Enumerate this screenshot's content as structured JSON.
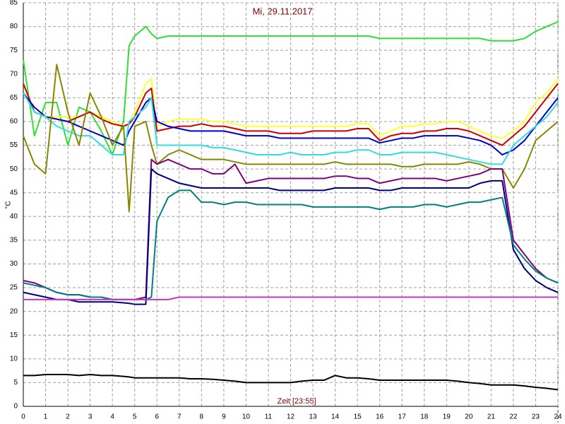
{
  "chart_data": {
    "type": "line",
    "title": "Mi, 29.11.2017",
    "y_label": "°C",
    "x_label": "Zeit [23:55]",
    "xlim": [
      0,
      24
    ],
    "xticks": [
      0,
      1,
      2,
      3,
      4,
      5,
      6,
      7,
      8,
      9,
      10,
      11,
      12,
      13,
      14,
      15,
      16,
      17,
      18,
      19,
      20,
      21,
      22,
      23,
      24
    ],
    "ylim": [
      0,
      85
    ],
    "yticks": [
      0,
      5,
      10,
      15,
      20,
      25,
      30,
      35,
      40,
      45,
      50,
      55,
      60,
      65,
      70,
      75,
      80,
      85
    ],
    "grid": true,
    "x": [
      0,
      0.5,
      1,
      1.5,
      2,
      2.5,
      3,
      3.5,
      4,
      4.5,
      4.75,
      5,
      5.5,
      5.75,
      6,
      6.5,
      7,
      7.5,
      8,
      8.5,
      9,
      9.5,
      10,
      10.5,
      11,
      11.5,
      12,
      12.5,
      13,
      13.5,
      14,
      14.5,
      15,
      15.5,
      16,
      16.5,
      17,
      17.5,
      18,
      18.5,
      19,
      19.5,
      20,
      20.5,
      21,
      21.5,
      22,
      22.5,
      23,
      23.5,
      24
    ],
    "series": [
      {
        "color": "#33dd33",
        "values": [
          73,
          57,
          64,
          64,
          55,
          63,
          62,
          58,
          53,
          60,
          76,
          78,
          80,
          78.5,
          77.5,
          78,
          78,
          78,
          78,
          78,
          78,
          78,
          78,
          78,
          78,
          78,
          78,
          78,
          78,
          78,
          78,
          78,
          78,
          78,
          77.5,
          77.5,
          77.5,
          77.5,
          77.5,
          77.5,
          77.5,
          77.5,
          77.5,
          77.5,
          77,
          77,
          77,
          77.5,
          79,
          80,
          81
        ]
      },
      {
        "color": "#ffff33",
        "values": [
          68,
          62,
          61,
          61,
          61,
          61,
          62,
          61,
          60,
          59,
          59.5,
          62,
          68,
          69,
          59,
          60,
          60.5,
          60.5,
          60.5,
          60,
          60,
          59.5,
          59,
          59,
          59,
          59,
          59,
          59,
          59,
          59,
          59,
          59,
          59.5,
          59.5,
          57,
          58,
          59,
          59,
          59.5,
          59.5,
          60,
          60,
          59,
          58,
          57,
          56.5,
          58,
          60,
          64,
          66,
          69
        ]
      },
      {
        "color": "#cc0000",
        "values": [
          68,
          62,
          61,
          60.5,
          60,
          61,
          62,
          60.5,
          59.5,
          59,
          59.5,
          61,
          66,
          67,
          58,
          58.5,
          59,
          59,
          59.5,
          59,
          59,
          58.5,
          58,
          58,
          58,
          57.5,
          57.5,
          57.5,
          58,
          58,
          58,
          58,
          58.5,
          58.5,
          56,
          57,
          57.5,
          57.5,
          58,
          58,
          58.5,
          58.5,
          58,
          57,
          56,
          55,
          57,
          59,
          62,
          65,
          68
        ]
      },
      {
        "color": "#0000cc",
        "values": [
          66,
          63,
          61,
          60.5,
          60,
          59,
          58,
          57,
          56,
          55,
          58,
          60,
          64,
          65,
          60,
          59,
          58.5,
          58,
          58,
          58,
          58,
          57.5,
          57,
          57,
          57,
          56.5,
          56.5,
          56.5,
          56.5,
          56.5,
          56.5,
          56.5,
          56.5,
          56.5,
          55.5,
          56,
          56.5,
          56.5,
          57,
          57,
          57,
          57,
          56.5,
          56,
          55,
          53,
          54,
          56,
          59,
          62,
          65
        ]
      },
      {
        "color": "#33dddd",
        "values": [
          66,
          62,
          61,
          59,
          58,
          57,
          57,
          55,
          53,
          53,
          60,
          61,
          63,
          65,
          55,
          55,
          55,
          55,
          55,
          54.5,
          54.5,
          54,
          53.5,
          53,
          53,
          53,
          53.5,
          53,
          53,
          53,
          53.5,
          53.5,
          54,
          54,
          53,
          53,
          53.5,
          53.5,
          53.5,
          53.5,
          53,
          52.5,
          52,
          51.5,
          51,
          51,
          55,
          57,
          59,
          61,
          64
        ]
      },
      {
        "color": "#888800",
        "values": [
          57,
          51,
          49,
          72,
          62,
          55,
          66,
          61,
          55,
          59,
          41,
          59,
          60,
          55,
          51,
          53,
          54,
          53,
          52,
          52,
          52,
          51.5,
          51,
          51,
          51,
          51,
          51,
          51,
          51,
          51,
          51.5,
          51,
          51,
          51,
          51,
          51,
          50.5,
          50.5,
          51,
          51,
          51,
          51,
          51.5,
          51,
          50,
          50,
          46,
          50,
          56,
          58,
          60
        ]
      },
      {
        "color": "#800080",
        "values": [
          26.5,
          26,
          25,
          24,
          23.5,
          23.5,
          23,
          23,
          22.5,
          22.5,
          22.5,
          22.5,
          23,
          52,
          51,
          52,
          51,
          50,
          50,
          49,
          49,
          51,
          47,
          47.5,
          48,
          48,
          48,
          48,
          48,
          48,
          48.5,
          48.5,
          48,
          48,
          47,
          47.5,
          48,
          48,
          48,
          48,
          47.5,
          48,
          48.5,
          49,
          50,
          50,
          35,
          32,
          29,
          27,
          26
        ]
      },
      {
        "color": "#000080",
        "values": [
          24,
          23.5,
          23,
          22.5,
          22.5,
          22,
          22,
          22,
          22,
          21.8,
          21.7,
          21.5,
          21.5,
          50,
          49,
          48,
          47,
          46.5,
          46,
          46,
          46,
          46,
          46,
          46,
          46,
          45.5,
          45.5,
          45.5,
          45.5,
          45.5,
          46,
          46,
          46,
          46,
          45.5,
          45.5,
          46,
          46,
          46,
          46,
          46,
          46,
          46,
          47,
          47.5,
          47.5,
          33,
          29,
          26.5,
          25,
          24
        ]
      },
      {
        "color": "#008080",
        "values": [
          26,
          25.5,
          25,
          24,
          23.5,
          23.5,
          23,
          23,
          22.5,
          22.5,
          22.5,
          22.5,
          22.5,
          23,
          39,
          44,
          45.5,
          45.5,
          43,
          43,
          42.5,
          43,
          43,
          42.5,
          42.5,
          42.5,
          42.5,
          42.5,
          42,
          42,
          42,
          42,
          42,
          42,
          41.5,
          42,
          42,
          42,
          42.5,
          42.5,
          42,
          42.5,
          43,
          43,
          43.5,
          44,
          34,
          31,
          28.5,
          27,
          26
        ]
      },
      {
        "color": "#cc33cc",
        "values": [
          22.5,
          22.5,
          22.5,
          22.5,
          22.5,
          22.5,
          22.5,
          22.5,
          22.5,
          22.5,
          22.5,
          22.5,
          22.5,
          22.5,
          22.5,
          22.5,
          23,
          23,
          23,
          23,
          23,
          23,
          23,
          23,
          23,
          23,
          23,
          23,
          23,
          23,
          23,
          23,
          23,
          23,
          23,
          23,
          23,
          23,
          23,
          23,
          23,
          23,
          23,
          23,
          23,
          23,
          23,
          23,
          23,
          23,
          23
        ]
      },
      {
        "color": "#000000",
        "values": [
          6.5,
          6.5,
          6.7,
          6.7,
          6.7,
          6.5,
          6.7,
          6.5,
          6.5,
          6.3,
          6.2,
          6,
          6,
          6,
          6,
          6,
          6,
          5.8,
          5.8,
          5.7,
          5.5,
          5.3,
          5,
          5,
          5,
          5,
          5,
          5.3,
          5.5,
          5.5,
          6.5,
          6,
          6,
          5.8,
          5.5,
          5.5,
          5.5,
          5.5,
          5.5,
          5.5,
          5.5,
          5.3,
          5,
          4.8,
          4.5,
          4.5,
          4.5,
          4.3,
          4,
          3.8,
          3.5
        ]
      }
    ]
  }
}
